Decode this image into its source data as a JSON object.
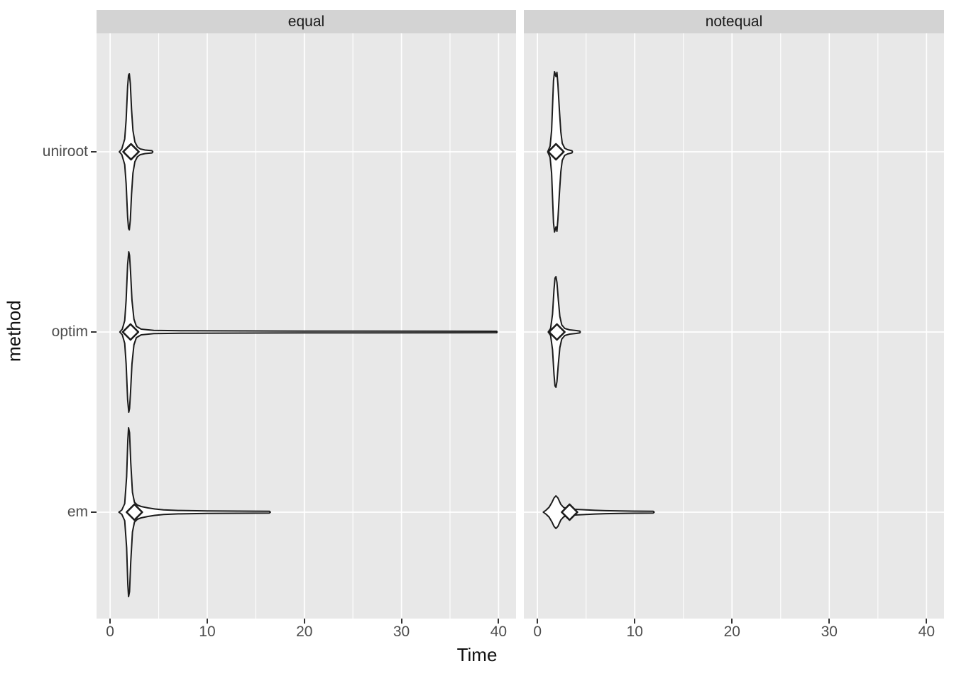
{
  "chart_data": {
    "type": "violin",
    "title": "",
    "xlabel": "Time",
    "ylabel": "method",
    "legend": "none",
    "grid": "on",
    "marker": "open-diamond-mean",
    "y_categories": [
      "uniroot",
      "optim",
      "em"
    ],
    "x_ticks": [
      0,
      10,
      20,
      30,
      40
    ],
    "x_minor_ticks": [
      5,
      15,
      25,
      35
    ],
    "x_range": [
      -1.4,
      41.8
    ],
    "facets": [
      {
        "label": "equal",
        "violins": [
          {
            "method": "uniroot",
            "row": 0,
            "mean": 2.15,
            "min": 0.95,
            "max": 4.4,
            "profile": [
              [
                0.95,
                0
              ],
              [
                1.2,
                4
              ],
              [
                1.5,
                18
              ],
              [
                1.65,
                45
              ],
              [
                1.8,
                92
              ],
              [
                1.9,
                108
              ],
              [
                1.98,
                110
              ],
              [
                2.08,
                96
              ],
              [
                2.2,
                60
              ],
              [
                2.35,
                30
              ],
              [
                2.55,
                14
              ],
              [
                2.8,
                7
              ],
              [
                3.1,
                4
              ],
              [
                3.6,
                2.5
              ],
              [
                4.3,
                1.6
              ],
              [
                4.4,
                0
              ]
            ]
          },
          {
            "method": "optim",
            "row": 1,
            "mean": 2.1,
            "min": 1.0,
            "max": 39.85,
            "profile": [
              [
                1.0,
                0
              ],
              [
                1.25,
                4
              ],
              [
                1.5,
                16
              ],
              [
                1.65,
                45
              ],
              [
                1.8,
                95
              ],
              [
                1.92,
                113
              ],
              [
                2.0,
                108
              ],
              [
                2.1,
                85
              ],
              [
                2.25,
                45
              ],
              [
                2.45,
                18
              ],
              [
                2.7,
                8
              ],
              [
                3.2,
                4
              ],
              [
                4.5,
                2.2
              ],
              [
                8,
                1.7
              ],
              [
                20,
                1.3
              ],
              [
                39.8,
                1.0
              ],
              [
                39.85,
                0
              ]
            ]
          },
          {
            "method": "em",
            "row": 2,
            "mean": 2.5,
            "min": 0.9,
            "max": 16.5,
            "profile": [
              [
                0.9,
                0
              ],
              [
                1.2,
                3
              ],
              [
                1.5,
                12
              ],
              [
                1.7,
                50
              ],
              [
                1.82,
                102
              ],
              [
                1.9,
                119
              ],
              [
                2.0,
                112
              ],
              [
                2.12,
                70
              ],
              [
                2.3,
                28
              ],
              [
                2.5,
                14
              ],
              [
                2.8,
                10
              ],
              [
                3.2,
                8
              ],
              [
                3.9,
                6
              ],
              [
                4.6,
                4.5
              ],
              [
                5.5,
                3.2
              ],
              [
                7,
                2.4
              ],
              [
                10,
                1.8
              ],
              [
                16.4,
                1.2
              ],
              [
                16.5,
                0
              ]
            ]
          }
        ]
      },
      {
        "label": "notequal",
        "violins": [
          {
            "method": "uniroot",
            "row": 0,
            "mean": 1.9,
            "min": 1.05,
            "max": 3.6,
            "profile": [
              [
                1.05,
                0
              ],
              [
                1.3,
                8
              ],
              [
                1.45,
                30
              ],
              [
                1.55,
                64
              ],
              [
                1.65,
                100
              ],
              [
                1.75,
                113
              ],
              [
                1.9,
                106
              ],
              [
                2.0,
                112
              ],
              [
                2.1,
                95
              ],
              [
                2.25,
                60
              ],
              [
                2.4,
                28
              ],
              [
                2.55,
                12
              ],
              [
                2.8,
                5
              ],
              [
                3.1,
                3
              ],
              [
                3.55,
                1.5
              ],
              [
                3.6,
                0
              ]
            ]
          },
          {
            "method": "optim",
            "row": 1,
            "mean": 2.0,
            "min": 1.1,
            "max": 4.4,
            "profile": [
              [
                1.1,
                0
              ],
              [
                1.35,
                5
              ],
              [
                1.55,
                25
              ],
              [
                1.7,
                60
              ],
              [
                1.8,
                76
              ],
              [
                1.9,
                78
              ],
              [
                2.0,
                70
              ],
              [
                2.15,
                45
              ],
              [
                2.3,
                22
              ],
              [
                2.5,
                10
              ],
              [
                2.8,
                5
              ],
              [
                3.3,
                3
              ],
              [
                4.0,
                2
              ],
              [
                4.35,
                1.3
              ],
              [
                4.4,
                0
              ]
            ]
          },
          {
            "method": "em",
            "row": 2,
            "mean": 3.3,
            "min": 0.6,
            "max": 12.0,
            "profile": [
              [
                0.6,
                0
              ],
              [
                0.9,
                3
              ],
              [
                1.2,
                7
              ],
              [
                1.5,
                14
              ],
              [
                1.7,
                20
              ],
              [
                1.9,
                23
              ],
              [
                2.1,
                20
              ],
              [
                2.4,
                11
              ],
              [
                2.7,
                6.5
              ],
              [
                3.1,
                5
              ],
              [
                3.6,
                4.2
              ],
              [
                4.2,
                3.8
              ],
              [
                5.0,
                3.2
              ],
              [
                5.9,
                2.6
              ],
              [
                7.0,
                2.1
              ],
              [
                8.5,
                1.7
              ],
              [
                11.9,
                1.2
              ],
              [
                12.0,
                0
              ]
            ]
          }
        ]
      }
    ],
    "colors": {
      "panel_bg": "#E8E8E8",
      "strip_bg": "#D3D3D3",
      "grid": "#FFFFFF",
      "violin_stroke": "#1C1C1C",
      "axis_text": "#4D4D4D",
      "title_text": "#111111",
      "tick_mark": "#333333"
    }
  }
}
